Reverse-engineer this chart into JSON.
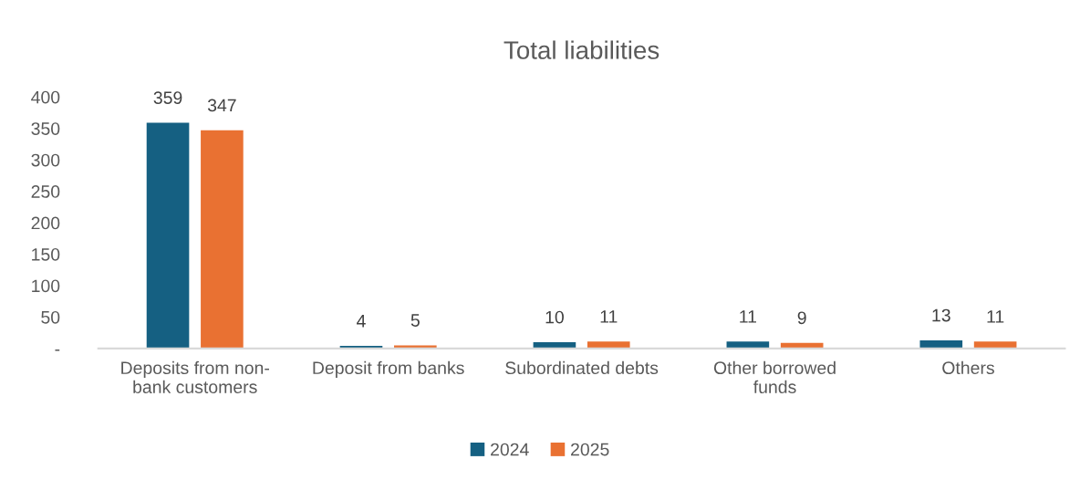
{
  "chart_data": {
    "type": "bar",
    "title": "Total liabilities",
    "categories": [
      "Deposits from non-\nbank customers",
      "Deposit from banks",
      "Subordinated debts",
      "Other borrowed\nfunds",
      "Others"
    ],
    "series": [
      {
        "name": "2024",
        "color": "#156082",
        "values": [
          359,
          4,
          10,
          11,
          13
        ]
      },
      {
        "name": "2025",
        "color": "#e97132",
        "values": [
          347,
          5,
          11,
          9,
          11
        ]
      }
    ],
    "ylim": [
      0,
      400
    ],
    "yticks": [
      {
        "value": 0,
        "label": "-"
      },
      50,
      100,
      150,
      200,
      250,
      300,
      350,
      400
    ],
    "data_labels": true,
    "grid": false,
    "legend": "bottom"
  }
}
